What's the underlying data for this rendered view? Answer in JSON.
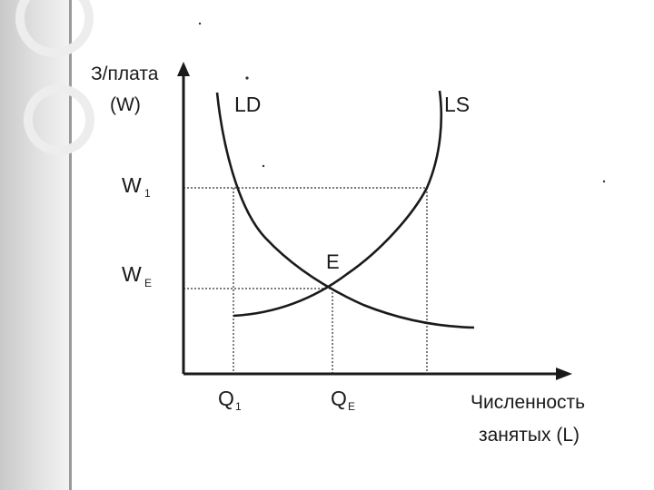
{
  "diagram": {
    "y_axis_label_line1": "З/плата",
    "y_axis_label_line2": "(W)",
    "x_axis_label_line1": "Численность",
    "x_axis_label_line2": "занятых (L)",
    "curve_demand_label": "LD",
    "curve_supply_label": "LS",
    "equilibrium_label": "E",
    "wage_high_label": "W",
    "wage_high_sub": "1",
    "wage_eq_label": "W",
    "wage_eq_sub": "E",
    "qty_low_label": "Q",
    "qty_low_sub": "1",
    "qty_eq_label": "Q",
    "qty_eq_sub": "E"
  },
  "colors": {
    "ink": "#1a1a1a",
    "band": "#d4d4d4"
  }
}
